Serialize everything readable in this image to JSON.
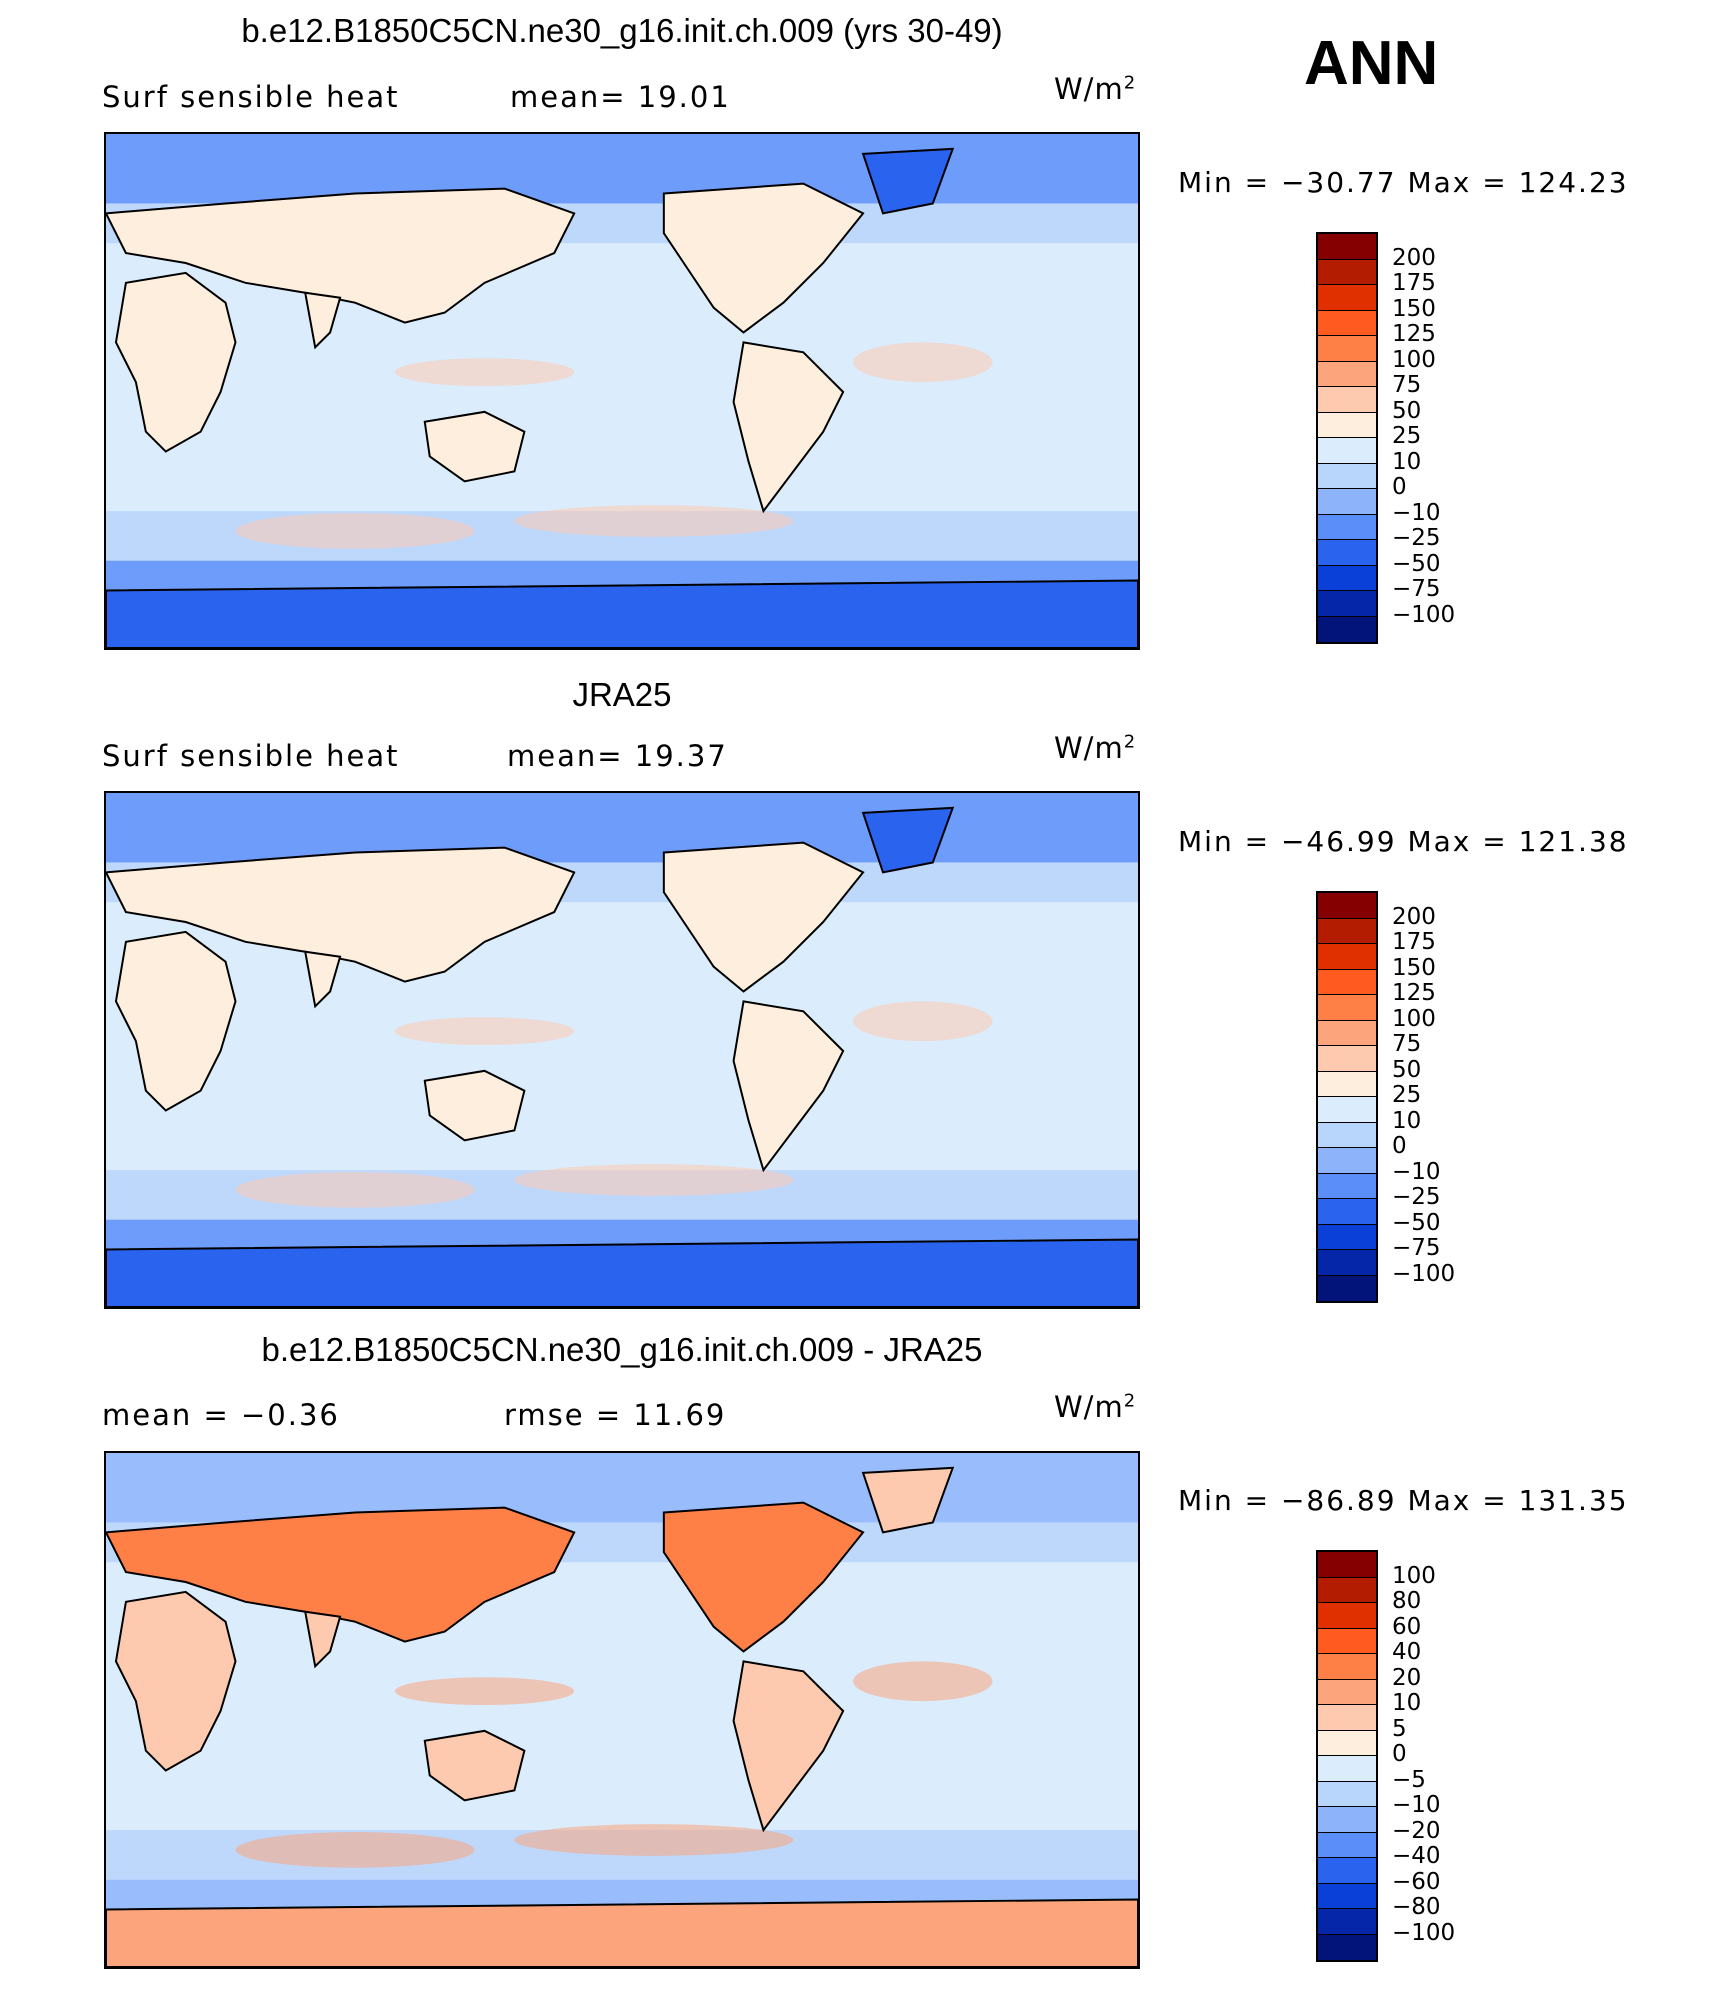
{
  "season": "ANN",
  "panels": [
    {
      "title": "b.e12.B1850C5CN.ne30_g16.init.ch.009 (yrs 30-49)",
      "left_label": "Surf  sensible  heat",
      "center_label": "mean=   19.01",
      "units": "W/m",
      "units_sup": "2",
      "minmax": "Min  =  −30.77  Max  =  124.23",
      "levels": [
        "200",
        "175",
        "150",
        "125",
        "100",
        "75",
        "50",
        "25",
        "10",
        "0",
        "−10",
        "−25",
        "−50",
        "−75",
        "−100"
      ],
      "colors": [
        "#850000",
        "#b41c00",
        "#e03000",
        "#ff5a20",
        "#fe8047",
        "#fca57d",
        "#fdcab0",
        "#fdeedd",
        "#dbecfc",
        "#b8d5fb",
        "#8db4fb",
        "#5b8ef9",
        "#2a64ee",
        "#0b40d8",
        "#0626aa",
        "#02137a"
      ],
      "map_fill": [
        "#dbecfc",
        "#b8d5fb",
        "#5b8ef9",
        "#fdcab0",
        "#fdeedd",
        "#2a64ee"
      ]
    },
    {
      "title": "JRA25",
      "left_label": "Surf  sensible  heat",
      "center_label": "mean=   19.37",
      "units": "W/m",
      "units_sup": "2",
      "minmax": "Min  =  −46.99  Max  =  121.38",
      "levels": [
        "200",
        "175",
        "150",
        "125",
        "100",
        "75",
        "50",
        "25",
        "10",
        "0",
        "−10",
        "−25",
        "−50",
        "−75",
        "−100"
      ],
      "colors": [
        "#850000",
        "#b41c00",
        "#e03000",
        "#ff5a20",
        "#fe8047",
        "#fca57d",
        "#fdcab0",
        "#fdeedd",
        "#dbecfc",
        "#b8d5fb",
        "#8db4fb",
        "#5b8ef9",
        "#2a64ee",
        "#0b40d8",
        "#0626aa",
        "#02137a"
      ],
      "map_fill": [
        "#dbecfc",
        "#b8d5fb",
        "#5b8ef9",
        "#fdcab0",
        "#fdeedd",
        "#2a64ee"
      ]
    },
    {
      "title": "b.e12.B1850C5CN.ne30_g16.init.ch.009 - JRA25",
      "left_label": "mean  =    −0.36",
      "center_label": "rmse  =    11.69",
      "units": "W/m",
      "units_sup": "2",
      "minmax": "Min  =  −86.89  Max  =  131.35",
      "levels": [
        "100",
        "80",
        "60",
        "40",
        "20",
        "10",
        "5",
        "0",
        "−5",
        "−10",
        "−20",
        "−40",
        "−60",
        "−80",
        "−100"
      ],
      "colors": [
        "#850000",
        "#b41c00",
        "#e03000",
        "#ff5a20",
        "#fe8047",
        "#fca57d",
        "#fdcab0",
        "#fdeedd",
        "#dbecfc",
        "#b8d5fb",
        "#8db4fb",
        "#5b8ef9",
        "#2a64ee",
        "#0b40d8",
        "#0626aa",
        "#02137a"
      ],
      "map_fill": [
        "#dbecfc",
        "#b8d5fb",
        "#8db4fb",
        "#fca57d",
        "#fdcab0",
        "#fe8047"
      ]
    }
  ]
}
